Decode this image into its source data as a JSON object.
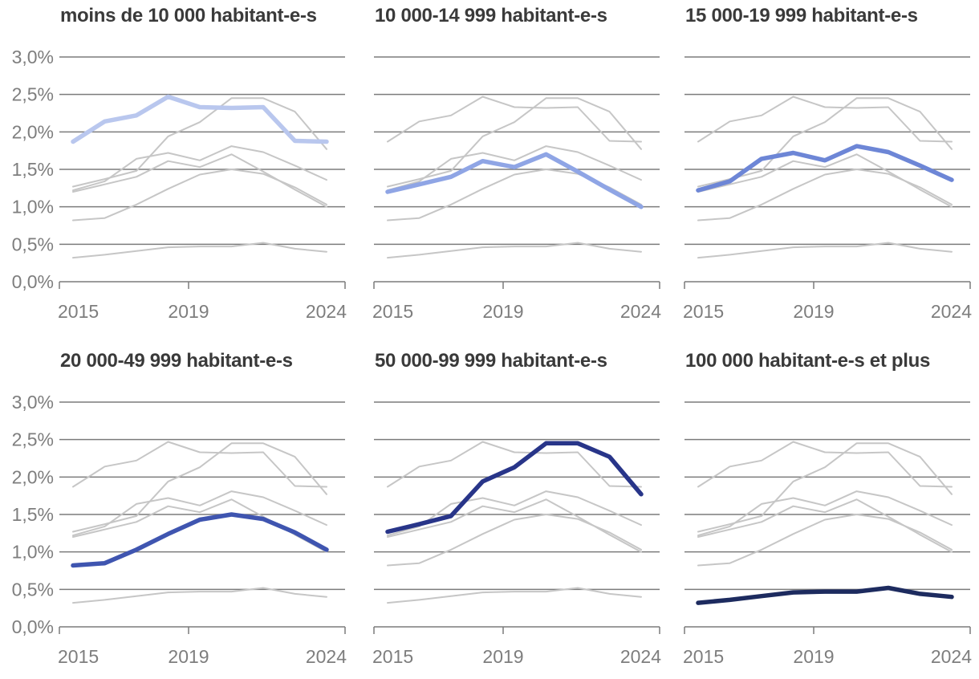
{
  "chart_data": {
    "type": "line",
    "title": "",
    "description": "Small multiples: taux par taille de commune, six panneaux, série du panneau mise en évidence en bleu, autres séries en gris",
    "x": [
      2015,
      2016,
      2017,
      2018,
      2019,
      2020,
      2021,
      2022,
      2023
    ],
    "x_axis_ticks": [
      "2015",
      "2019",
      "2024"
    ],
    "y_axis_ticks": [
      "3,0%",
      "2,5%",
      "2,0%",
      "1,5%",
      "1,0%",
      "0,5%",
      "0,0%"
    ],
    "ylim": [
      0.0,
      3.0
    ],
    "y_step": 0.5,
    "unit": "%",
    "grid": "horizontal",
    "legend_position": "none",
    "series": [
      {
        "name": "moins de 10 000 habitant-e-s",
        "values": [
          1.87,
          2.14,
          2.22,
          2.47,
          2.33,
          2.32,
          2.33,
          1.88,
          1.87
        ]
      },
      {
        "name": "10 000-14 999 habitant-e-s",
        "values": [
          1.2,
          1.3,
          1.4,
          1.61,
          1.53,
          1.7,
          1.47,
          1.23,
          1.0
        ]
      },
      {
        "name": "15 000-19 999 habitant-e-s",
        "values": [
          1.22,
          1.34,
          1.64,
          1.72,
          1.62,
          1.81,
          1.73,
          1.55,
          1.36
        ]
      },
      {
        "name": "20 000-49 999 habitant-e-s",
        "values": [
          0.82,
          0.85,
          1.03,
          1.24,
          1.43,
          1.5,
          1.44,
          1.26,
          1.03
        ]
      },
      {
        "name": "50 000-99 999 habitant-e-s",
        "values": [
          1.27,
          1.37,
          1.48,
          1.94,
          2.13,
          2.45,
          2.45,
          2.27,
          1.77
        ]
      },
      {
        "name": "100 000 habitant-e-s et plus",
        "values": [
          0.32,
          0.36,
          0.41,
          0.46,
          0.47,
          0.47,
          0.52,
          0.44,
          0.4
        ]
      }
    ],
    "panels": [
      {
        "title": "moins de 10 000 habitant-e-s",
        "highlight_index": 0,
        "highlight_color": "#b9c7ee",
        "show_y_labels": true
      },
      {
        "title": "10 000-14 999 habitant-e-s",
        "highlight_index": 1,
        "highlight_color": "#8fa5e5",
        "show_y_labels": false
      },
      {
        "title": "15 000-19 999 habitant-e-s",
        "highlight_index": 2,
        "highlight_color": "#6d86d6",
        "show_y_labels": false
      },
      {
        "title": "20 000-49 999 habitant-e-s",
        "highlight_index": 3,
        "highlight_color": "#3f55b0",
        "show_y_labels": true
      },
      {
        "title": "50 000-99 999 habitant-e-s",
        "highlight_index": 4,
        "highlight_color": "#283589",
        "show_y_labels": false
      },
      {
        "title": "100 000 habitant-e-s et plus",
        "highlight_index": 5,
        "highlight_color": "#1d2b5f",
        "show_y_labels": false
      }
    ],
    "colors": {
      "background": "#ffffff",
      "gridline": "#7b7b7b",
      "context_line": "#c6c6c6",
      "tick_label": "#7e7e7e",
      "title_text": "#3a3a3a"
    }
  }
}
